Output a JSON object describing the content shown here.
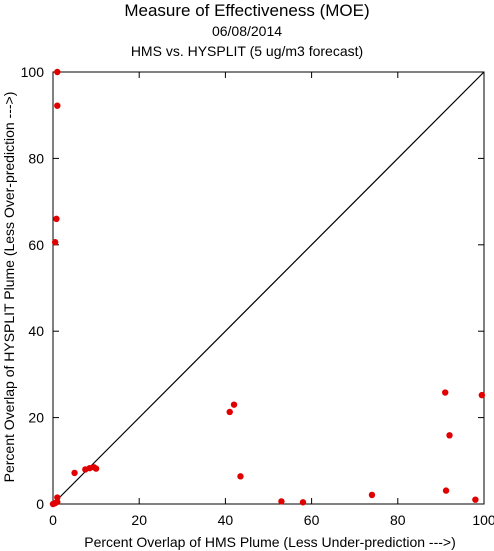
{
  "header": {
    "title": "Measure of Effectiveness (MOE)",
    "date": "06/08/2014",
    "subtitle": "HMS vs. HYSPLIT  (5 ug/m3 forecast)"
  },
  "colors": {
    "points": "#e00000",
    "axes": "#000000",
    "reference_line": "#000000"
  },
  "chart_data": {
    "type": "scatter",
    "title": "Measure of Effectiveness (MOE)",
    "subtitle": "HMS vs. HYSPLIT  (5 ug/m3 forecast)",
    "xlabel": "Percent Overlap of HMS Plume (Less Under-prediction --->)",
    "ylabel": "Percent Overlap of HYSPLIT Plume (Less Over-prediction --->)",
    "xlim": [
      0,
      100
    ],
    "ylim": [
      0,
      100
    ],
    "xticks": [
      0,
      20,
      40,
      60,
      80,
      100
    ],
    "yticks": [
      0,
      20,
      40,
      60,
      80,
      100
    ],
    "grid": false,
    "reference_line": {
      "from": [
        0,
        0
      ],
      "to": [
        100,
        100
      ]
    },
    "points": [
      {
        "x": 1.0,
        "y": 100
      },
      {
        "x": 1.0,
        "y": 92.2
      },
      {
        "x": 0.8,
        "y": 66.0
      },
      {
        "x": 0.5,
        "y": 60.6
      },
      {
        "x": 0.0,
        "y": 0.0
      },
      {
        "x": 0.5,
        "y": 0.2
      },
      {
        "x": 1.0,
        "y": 0.5
      },
      {
        "x": 1.0,
        "y": 1.5
      },
      {
        "x": 5.0,
        "y": 7.2
      },
      {
        "x": 7.5,
        "y": 8.0
      },
      {
        "x": 8.5,
        "y": 8.3
      },
      {
        "x": 9.5,
        "y": 8.5
      },
      {
        "x": 10.0,
        "y": 8.2
      },
      {
        "x": 41.0,
        "y": 21.3
      },
      {
        "x": 42.0,
        "y": 23.0
      },
      {
        "x": 43.5,
        "y": 6.4
      },
      {
        "x": 53.0,
        "y": 0.6
      },
      {
        "x": 58.0,
        "y": 0.4
      },
      {
        "x": 74.0,
        "y": 2.1
      },
      {
        "x": 91.0,
        "y": 25.8
      },
      {
        "x": 91.2,
        "y": 3.1
      },
      {
        "x": 92.0,
        "y": 15.9
      },
      {
        "x": 98.0,
        "y": 1.0
      },
      {
        "x": 99.5,
        "y": 25.2
      }
    ]
  }
}
